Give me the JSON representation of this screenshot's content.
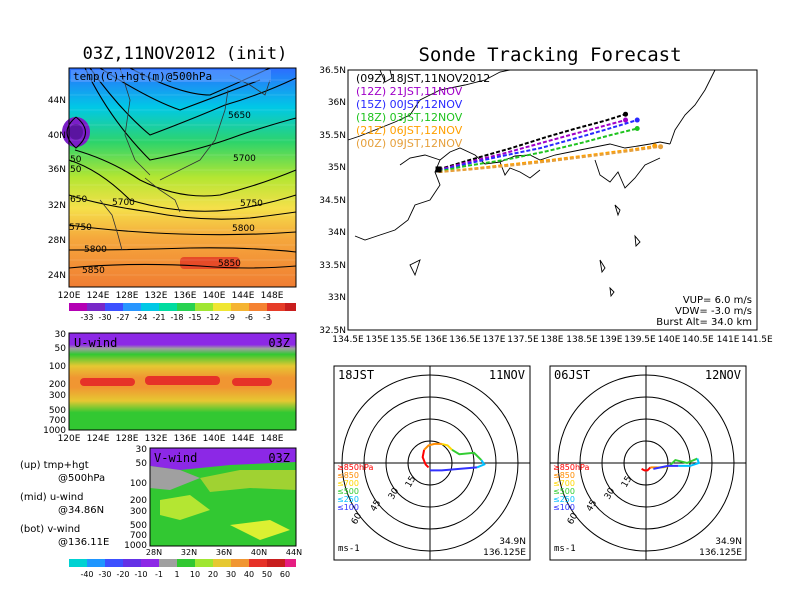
{
  "left": {
    "title": "03Z,11NOV2012 (init)",
    "map_label": "temp(C)+hgt(m)@500hPa",
    "map_lat_ticks": [
      "44N",
      "40N",
      "36N",
      "32N",
      "28N",
      "24N"
    ],
    "map_lon_ticks": [
      "120E",
      "124E",
      "128E",
      "132E",
      "136E",
      "140E",
      "144E",
      "148E"
    ],
    "contour_labels": [
      "5650",
      "5650",
      "5700",
      "5700",
      "5750",
      "5750",
      "5800",
      "5800",
      "5850",
      "5850",
      "50",
      "50",
      "650"
    ],
    "temp_colorbar": [
      "-33",
      "-30",
      "-27",
      "-24",
      "-21",
      "-18",
      "-15",
      "-12",
      "-9",
      "-6",
      "-3"
    ],
    "u_label": "U-wind",
    "u_time": "03Z",
    "u_pressure_ticks": [
      "30",
      "50",
      "100",
      "200",
      "300",
      "500",
      "700",
      "1000"
    ],
    "u_lon_ticks": [
      "120E",
      "124E",
      "128E",
      "132E",
      "136E",
      "140E",
      "144E",
      "148E"
    ],
    "v_label": "V-wind",
    "v_time": "03Z",
    "v_pressure_ticks": [
      "30",
      "50",
      "100",
      "200",
      "300",
      "500",
      "700",
      "1000"
    ],
    "v_lat_ticks": [
      "28N",
      "32N",
      "36N",
      "40N",
      "44N"
    ],
    "wind_colorbar": [
      "-40",
      "-30",
      "-20",
      "-10",
      "-1",
      "1",
      "10",
      "20",
      "30",
      "40",
      "50",
      "60"
    ],
    "notes": [
      {
        "a": "(up)  tmp+hgt",
        "b": "@500hPa"
      },
      {
        "a": "(mid)  u-wind",
        "b": "@34.86N"
      },
      {
        "a": "(bot)  v-wind",
        "b": "@136.11E"
      }
    ]
  },
  "right": {
    "title": "Sonde Tracking Forecast",
    "lat_ticks": [
      "36.5N",
      "36N",
      "35.5N",
      "35N",
      "34.5N",
      "34N",
      "33.5N",
      "33N",
      "32.5N"
    ],
    "lon_ticks": [
      "134.5E",
      "135E",
      "135.5E",
      "136E",
      "136.5E",
      "137E",
      "137.5E",
      "138E",
      "138.5E",
      "139E",
      "139.5E",
      "140E",
      "140.5E",
      "141E",
      "141.5E"
    ],
    "legend": [
      {
        "text": "(09Z)  18JST,11NOV2012",
        "color": "#000000"
      },
      {
        "text": "(12Z)  21JST,11NOV",
        "color": "#a000c8"
      },
      {
        "text": "(15Z)  00JST,12NOV",
        "color": "#2828ff"
      },
      {
        "text": "(18Z)  03JST,12NOV",
        "color": "#1ec31e"
      },
      {
        "text": "(21Z)  06JST,12NOV",
        "color": "#ffa000"
      },
      {
        "text": "(00Z)  09JST,12NOV",
        "color": "#e6a03c"
      }
    ],
    "params": [
      "VUP=  6.0  m/s",
      "VDW= -3.0  m/s",
      "Burst Alt= 34.0  km"
    ]
  },
  "hodographs": [
    {
      "left_label": "18JST",
      "right_label": "11NOV",
      "units": "ms-1",
      "lat": "34.9N",
      "lon": "136.125E"
    },
    {
      "left_label": "06JST",
      "right_label": "12NOV",
      "units": "ms-1",
      "lat": "34.9N",
      "lon": "136.125E"
    }
  ],
  "hodo_rings": [
    "15",
    "30",
    "45",
    "60"
  ],
  "hodo_levels": [
    {
      "text": "≥850hPa",
      "color": "#ff0000"
    },
    {
      "text": "≤850",
      "color": "#ff8c00"
    },
    {
      "text": "≤700",
      "color": "#ffd700"
    },
    {
      "text": "≤500",
      "color": "#32cd32"
    },
    {
      "text": "≤250",
      "color": "#00bfff"
    },
    {
      "text": "≤100",
      "color": "#3232ff"
    }
  ],
  "chart_data": [
    {
      "type": "line",
      "title": "Sonde Tracking Forecast",
      "xlim": [
        134.5,
        141.5
      ],
      "ylim": [
        32.5,
        36.5
      ],
      "series": [
        {
          "name": "(09Z)  18JST,11NOV2012",
          "color": "#000000",
          "x": [
            136.05,
            136.6,
            137.3,
            137.9,
            138.4,
            138.9,
            139.25
          ],
          "y": [
            34.97,
            35.12,
            35.3,
            35.47,
            35.6,
            35.72,
            35.82
          ]
        },
        {
          "name": "(12Z)  21JST,11NOV",
          "color": "#a000c8",
          "x": [
            136.05,
            136.5,
            137.1,
            137.7,
            138.3,
            138.8,
            139.25
          ],
          "y": [
            34.96,
            35.07,
            35.2,
            35.35,
            35.5,
            35.62,
            35.73
          ]
        },
        {
          "name": "(15Z)  00JST,12NOV",
          "color": "#2828ff",
          "x": [
            136.05,
            136.5,
            137.1,
            137.8,
            138.4,
            138.9,
            139.45
          ],
          "y": [
            34.95,
            35.05,
            35.17,
            35.3,
            35.45,
            35.58,
            35.73
          ]
        },
        {
          "name": "(18Z)  03JST,12NOV",
          "color": "#1ec31e",
          "x": [
            136.05,
            136.5,
            137.2,
            137.9,
            138.5,
            139.0,
            139.45
          ],
          "y": [
            34.94,
            35.02,
            35.12,
            35.25,
            35.38,
            35.5,
            35.6
          ]
        },
        {
          "name": "(21Z)  06JST,12NOV",
          "color": "#ffa000",
          "x": [
            136.05,
            136.6,
            137.3,
            138.0,
            138.7,
            139.3,
            139.75
          ],
          "y": [
            34.93,
            34.98,
            35.05,
            35.12,
            35.2,
            35.27,
            35.33
          ]
        },
        {
          "name": "(00Z)  09JST,12NOV",
          "color": "#e6a03c",
          "x": [
            136.05,
            136.6,
            137.3,
            138.0,
            138.7,
            139.3,
            139.85
          ],
          "y": [
            34.93,
            34.97,
            35.03,
            35.1,
            35.18,
            35.25,
            35.32
          ]
        }
      ]
    },
    {
      "type": "line",
      "title": "18JST 11NOV hodograph",
      "series": [
        {
          "name": "≥850hPa",
          "color": "#ff0000",
          "u": [
            -1,
            -3,
            -5,
            -4
          ],
          "v": [
            -3,
            -1,
            4,
            9
          ]
        },
        {
          "name": "≤850",
          "color": "#ff8c00",
          "u": [
            -4,
            -1,
            3,
            8
          ],
          "v": [
            9,
            12,
            13,
            13
          ]
        },
        {
          "name": "≤700",
          "color": "#ffd700",
          "u": [
            8,
            12,
            15
          ],
          "v": [
            13,
            12,
            9
          ]
        },
        {
          "name": "≤500",
          "color": "#32cd32",
          "u": [
            15,
            20,
            30,
            35
          ],
          "v": [
            9,
            6,
            7,
            2
          ]
        },
        {
          "name": "≤250",
          "color": "#00bfff",
          "u": [
            35,
            37,
            32
          ],
          "v": [
            2,
            -1,
            -3
          ]
        },
        {
          "name": "≤100",
          "color": "#3232ff",
          "u": [
            32,
            20,
            8,
            0
          ],
          "v": [
            -3,
            -4,
            -5,
            -5
          ]
        }
      ]
    },
    {
      "type": "line",
      "title": "06JST 12NOV hodograph",
      "series": [
        {
          "name": "≥850hPa",
          "color": "#ff0000",
          "u": [
            -3,
            -1,
            1,
            3
          ],
          "v": [
            -4,
            -5,
            -5,
            -3
          ]
        },
        {
          "name": "≤850",
          "color": "#ff8c00",
          "u": [
            3,
            5,
            8
          ],
          "v": [
            -3,
            -3,
            -3
          ]
        },
        {
          "name": "≤700",
          "color": "#ffd700",
          "u": [
            8,
            12,
            16
          ],
          "v": [
            -3,
            -3,
            -2
          ]
        },
        {
          "name": "≤500",
          "color": "#32cd32",
          "u": [
            16,
            20,
            28,
            35
          ],
          "v": [
            -2,
            2,
            0,
            3
          ]
        },
        {
          "name": "≤250",
          "color": "#00bfff",
          "u": [
            35,
            36,
            30,
            22
          ],
          "v": [
            3,
            0,
            -2,
            -2
          ]
        },
        {
          "name": "≤100",
          "color": "#3232ff",
          "u": [
            22,
            15,
            10,
            5
          ],
          "v": [
            -2,
            -2,
            -3,
            -4
          ]
        }
      ]
    }
  ]
}
